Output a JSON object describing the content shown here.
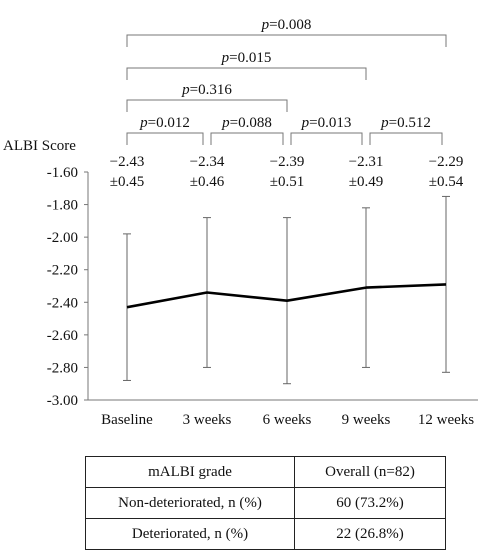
{
  "chart_data": {
    "type": "line",
    "ylabel": "ALBI Score",
    "categories": [
      "Baseline",
      "3 weeks",
      "6 weeks",
      "9 weeks",
      "12 weeks"
    ],
    "series": [
      {
        "values": [
          -2.43,
          -2.34,
          -2.39,
          -2.31,
          -2.29
        ],
        "sd": [
          0.45,
          0.46,
          0.51,
          0.49,
          0.54
        ]
      }
    ],
    "point_labels": [
      {
        "mean": "−2.43",
        "sd": "±0.45"
      },
      {
        "mean": "−2.34",
        "sd": "±0.46"
      },
      {
        "mean": "−2.39",
        "sd": "±0.51"
      },
      {
        "mean": "−2.31",
        "sd": "±0.49"
      },
      {
        "mean": "−2.29",
        "sd": "±0.54"
      }
    ],
    "ylim": [
      -3.0,
      -1.6
    ],
    "yticks": [
      "-1.60",
      "-1.80",
      "-2.00",
      "-2.20",
      "-2.40",
      "-2.60",
      "-2.80",
      "-3.00"
    ],
    "grid": false,
    "comparisons": [
      {
        "from": 0,
        "to": 4,
        "p": "0.008"
      },
      {
        "from": 0,
        "to": 3,
        "p": "0.015"
      },
      {
        "from": 0,
        "to": 2,
        "p": "0.316"
      },
      {
        "from": 0,
        "to": 1,
        "p": "0.012"
      },
      {
        "from": 1,
        "to": 2,
        "p": "0.088"
      },
      {
        "from": 2,
        "to": 3,
        "p": "0.013"
      },
      {
        "from": 3,
        "to": 4,
        "p": "0.512"
      }
    ],
    "p_prefix": "p",
    "p_equals": "="
  },
  "table": {
    "header": [
      "mALBI grade",
      "Overall (n=82)"
    ],
    "rows": [
      [
        "Non-deteriorated, n (%)",
        "60 (73.2%)"
      ],
      [
        "Deteriorated, n (%)",
        "22 (26.8%)"
      ]
    ]
  }
}
